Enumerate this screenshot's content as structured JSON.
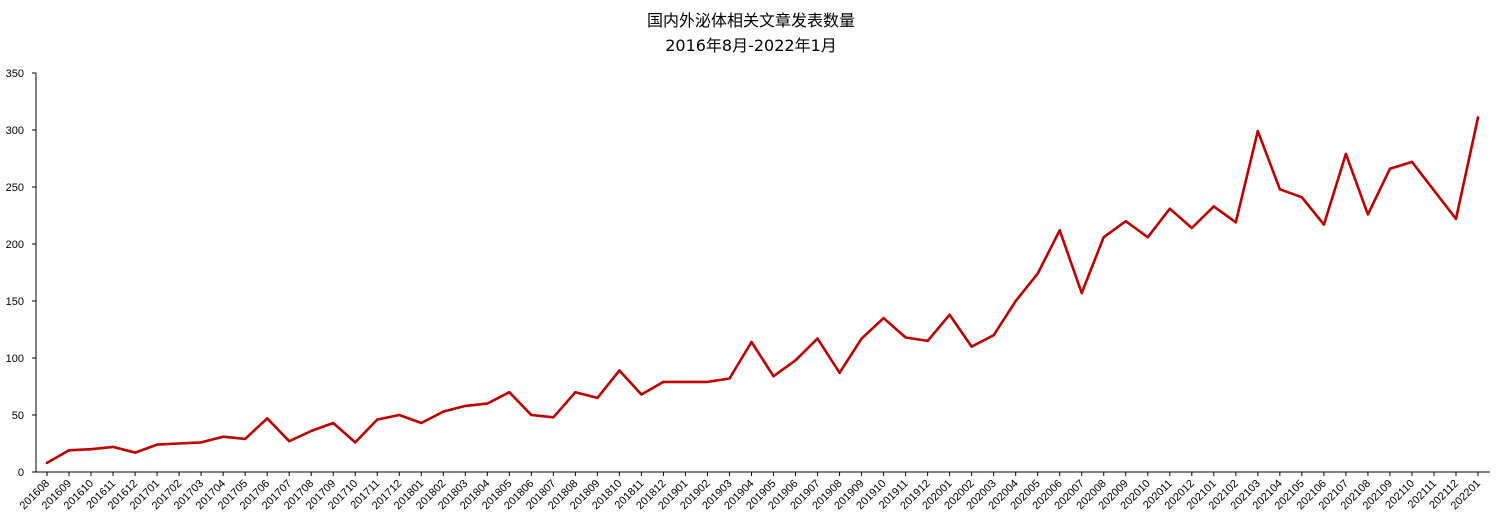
{
  "chart_data": {
    "type": "line",
    "title": "国内外泌体相关文章发表数量",
    "subtitle": "2016年8月-2022年1月",
    "xlabel": "",
    "ylabel": "",
    "ylim": [
      0,
      350
    ],
    "yticks": [
      0,
      50,
      100,
      150,
      200,
      250,
      300,
      350
    ],
    "grid": false,
    "legend": "none",
    "series_color": "#c00000",
    "categories": [
      "201608",
      "201609",
      "201610",
      "201611",
      "201612",
      "201701",
      "201702",
      "201703",
      "201704",
      "201705",
      "201706",
      "201707",
      "201708",
      "201709",
      "201710",
      "201711",
      "201712",
      "201801",
      "201802",
      "201803",
      "201804",
      "201805",
      "201806",
      "201807",
      "201808",
      "201809",
      "201810",
      "201811",
      "201812",
      "201901",
      "201902",
      "201903",
      "201904",
      "201905",
      "201906",
      "201907",
      "201908",
      "201909",
      "201910",
      "201911",
      "201912",
      "202001",
      "202002",
      "202003",
      "202004",
      "202005",
      "202006",
      "202007",
      "202008",
      "202009",
      "202010",
      "202011",
      "202012",
      "202101",
      "202102",
      "202103",
      "202104",
      "202105",
      "202106",
      "202107",
      "202108",
      "202109",
      "202110",
      "202111",
      "202112",
      "202201"
    ],
    "series": [
      {
        "values": [
          8,
          19,
          20,
          22,
          17,
          24,
          25,
          26,
          31,
          29,
          47,
          27,
          36,
          43,
          26,
          46,
          50,
          43,
          53,
          58,
          60,
          70,
          50,
          48,
          70,
          65,
          89,
          68,
          79,
          79,
          79,
          82,
          114,
          84,
          98,
          117,
          87,
          117,
          135,
          118,
          115,
          138,
          110,
          120,
          150,
          174,
          212,
          157,
          206,
          220,
          206,
          231,
          214,
          233,
          219,
          299,
          248,
          241,
          217,
          279,
          226,
          266,
          272,
          247,
          222,
          311
        ]
      }
    ]
  }
}
